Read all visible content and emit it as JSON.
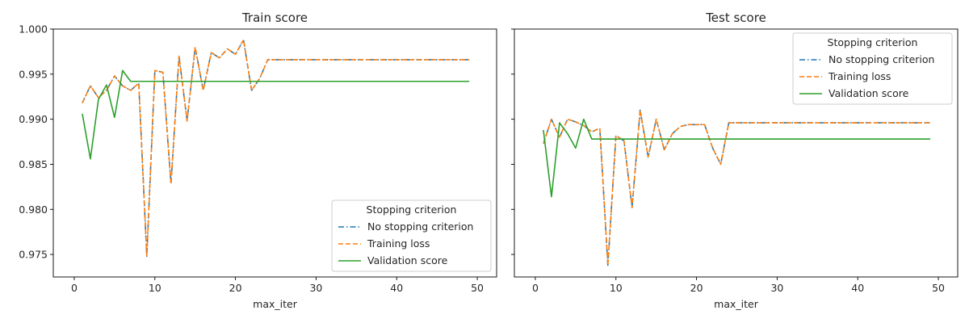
{
  "chart_data": [
    {
      "type": "line",
      "title": "Train score",
      "xlabel": "max_iter",
      "ylabel": "",
      "xlim": [
        -2.6,
        52.4
      ],
      "ylim": [
        0.9725,
        1.0
      ],
      "x_ticks": [
        0,
        10,
        20,
        30,
        40,
        50
      ],
      "y_ticks": [
        0.975,
        0.98,
        0.985,
        0.99,
        0.995,
        1.0
      ],
      "y_tick_labels": [
        "0.975",
        "0.980",
        "0.985",
        "0.990",
        "0.995",
        "1.000"
      ],
      "grid": false,
      "legend": {
        "title": "Stopping criterion",
        "placement": "lower-right"
      },
      "x": [
        1,
        2,
        3,
        4,
        5,
        6,
        7,
        8,
        9,
        10,
        11,
        12,
        13,
        14,
        15,
        16,
        17,
        18,
        19,
        20,
        21,
        22,
        23,
        24,
        25,
        26,
        27,
        28,
        29,
        30,
        31,
        32,
        33,
        34,
        35,
        36,
        37,
        38,
        39,
        40,
        41,
        42,
        43,
        44,
        45,
        46,
        47,
        48,
        49
      ],
      "series": [
        {
          "name": "No stopping criterion",
          "color": "#1f77b4",
          "dash": "dashdot",
          "values": [
            0.9918,
            0.9937,
            0.9924,
            0.9932,
            0.9948,
            0.9937,
            0.9932,
            0.994,
            0.9748,
            0.9954,
            0.9952,
            0.9828,
            0.997,
            0.9898,
            0.998,
            0.9932,
            0.9974,
            0.9968,
            0.9978,
            0.9972,
            0.9988,
            0.9932,
            0.9945,
            0.9966,
            0.9966,
            0.9966,
            0.9966,
            0.9966,
            0.9966,
            0.9966,
            0.9966,
            0.9966,
            0.9966,
            0.9966,
            0.9966,
            0.9966,
            0.9966,
            0.9966,
            0.9966,
            0.9966,
            0.9966,
            0.9966,
            0.9966,
            0.9966,
            0.9966,
            0.9966,
            0.9966,
            0.9966,
            0.9966
          ]
        },
        {
          "name": "Training loss",
          "color": "#ff7f0e",
          "dash": "dashed",
          "values": [
            0.9918,
            0.9937,
            0.9924,
            0.9932,
            0.9948,
            0.9937,
            0.9932,
            0.994,
            0.9748,
            0.9954,
            0.9952,
            0.9828,
            0.997,
            0.9898,
            0.998,
            0.9932,
            0.9974,
            0.9968,
            0.9978,
            0.9972,
            0.9988,
            0.9932,
            0.9945,
            0.9966,
            0.9966,
            0.9966,
            0.9966,
            0.9966,
            0.9966,
            0.9966,
            0.9966,
            0.9966,
            0.9966,
            0.9966,
            0.9966,
            0.9966,
            0.9966,
            0.9966,
            0.9966,
            0.9966,
            0.9966,
            0.9966,
            0.9966,
            0.9966,
            0.9966,
            0.9966,
            0.9966,
            0.9966,
            0.9966
          ]
        },
        {
          "name": "Validation score",
          "color": "#2ca02c",
          "dash": "solid",
          "values": [
            0.9906,
            0.9856,
            0.9922,
            0.9938,
            0.9902,
            0.9954,
            0.9942,
            0.9942,
            0.9942,
            0.9942,
            0.9942,
            0.9942,
            0.9942,
            0.9942,
            0.9942,
            0.9942,
            0.9942,
            0.9942,
            0.9942,
            0.9942,
            0.9942,
            0.9942,
            0.9942,
            0.9942,
            0.9942,
            0.9942,
            0.9942,
            0.9942,
            0.9942,
            0.9942,
            0.9942,
            0.9942,
            0.9942,
            0.9942,
            0.9942,
            0.9942,
            0.9942,
            0.9942,
            0.9942,
            0.9942,
            0.9942,
            0.9942,
            0.9942,
            0.9942,
            0.9942,
            0.9942,
            0.9942,
            0.9942,
            0.9942
          ]
        }
      ]
    },
    {
      "type": "line",
      "title": "Test score",
      "xlabel": "max_iter",
      "ylabel": "",
      "xlim": [
        -2.6,
        52.4
      ],
      "ylim": [
        0.9725,
        1.0
      ],
      "x_ticks": [
        0,
        10,
        20,
        30,
        40,
        50
      ],
      "y_ticks": [
        0.975,
        0.98,
        0.985,
        0.99,
        0.995,
        1.0
      ],
      "y_tick_labels": [
        "",
        "",
        "",
        "",
        "",
        ""
      ],
      "grid": false,
      "legend": {
        "title": "Stopping criterion",
        "placement": "upper-right"
      },
      "x": [
        1,
        2,
        3,
        4,
        5,
        6,
        7,
        8,
        9,
        10,
        11,
        12,
        13,
        14,
        15,
        16,
        17,
        18,
        19,
        20,
        21,
        22,
        23,
        24,
        25,
        26,
        27,
        28,
        29,
        30,
        31,
        32,
        33,
        34,
        35,
        36,
        37,
        38,
        39,
        40,
        41,
        42,
        43,
        44,
        45,
        46,
        47,
        48,
        49
      ],
      "series": [
        {
          "name": "No stopping criterion",
          "color": "#1f77b4",
          "dash": "dashdot",
          "values": [
            0.9873,
            0.99,
            0.988,
            0.99,
            0.9897,
            0.9893,
            0.9886,
            0.989,
            0.9738,
            0.9882,
            0.9876,
            0.9802,
            0.991,
            0.9858,
            0.99,
            0.9866,
            0.9884,
            0.9892,
            0.9894,
            0.9894,
            0.9894,
            0.9868,
            0.985,
            0.9896,
            0.9896,
            0.9896,
            0.9896,
            0.9896,
            0.9896,
            0.9896,
            0.9896,
            0.9896,
            0.9896,
            0.9896,
            0.9896,
            0.9896,
            0.9896,
            0.9896,
            0.9896,
            0.9896,
            0.9896,
            0.9896,
            0.9896,
            0.9896,
            0.9896,
            0.9896,
            0.9896,
            0.9896,
            0.9896
          ]
        },
        {
          "name": "Training loss",
          "color": "#ff7f0e",
          "dash": "dashed",
          "values": [
            0.9873,
            0.99,
            0.988,
            0.99,
            0.9897,
            0.9893,
            0.9886,
            0.989,
            0.9738,
            0.9882,
            0.9876,
            0.9802,
            0.991,
            0.9858,
            0.99,
            0.9866,
            0.9884,
            0.9892,
            0.9894,
            0.9894,
            0.9894,
            0.9868,
            0.985,
            0.9896,
            0.9896,
            0.9896,
            0.9896,
            0.9896,
            0.9896,
            0.9896,
            0.9896,
            0.9896,
            0.9896,
            0.9896,
            0.9896,
            0.9896,
            0.9896,
            0.9896,
            0.9896,
            0.9896,
            0.9896,
            0.9896,
            0.9896,
            0.9896,
            0.9896,
            0.9896,
            0.9896,
            0.9896,
            0.9896
          ]
        },
        {
          "name": "Validation score",
          "color": "#2ca02c",
          "dash": "solid",
          "values": [
            0.9888,
            0.9814,
            0.9896,
            0.9884,
            0.9868,
            0.99,
            0.9878,
            0.9878,
            0.9878,
            0.9878,
            0.9878,
            0.9878,
            0.9878,
            0.9878,
            0.9878,
            0.9878,
            0.9878,
            0.9878,
            0.9878,
            0.9878,
            0.9878,
            0.9878,
            0.9878,
            0.9878,
            0.9878,
            0.9878,
            0.9878,
            0.9878,
            0.9878,
            0.9878,
            0.9878,
            0.9878,
            0.9878,
            0.9878,
            0.9878,
            0.9878,
            0.9878,
            0.9878,
            0.9878,
            0.9878,
            0.9878,
            0.9878,
            0.9878,
            0.9878,
            0.9878,
            0.9878,
            0.9878,
            0.9878,
            0.9878
          ]
        }
      ]
    }
  ]
}
